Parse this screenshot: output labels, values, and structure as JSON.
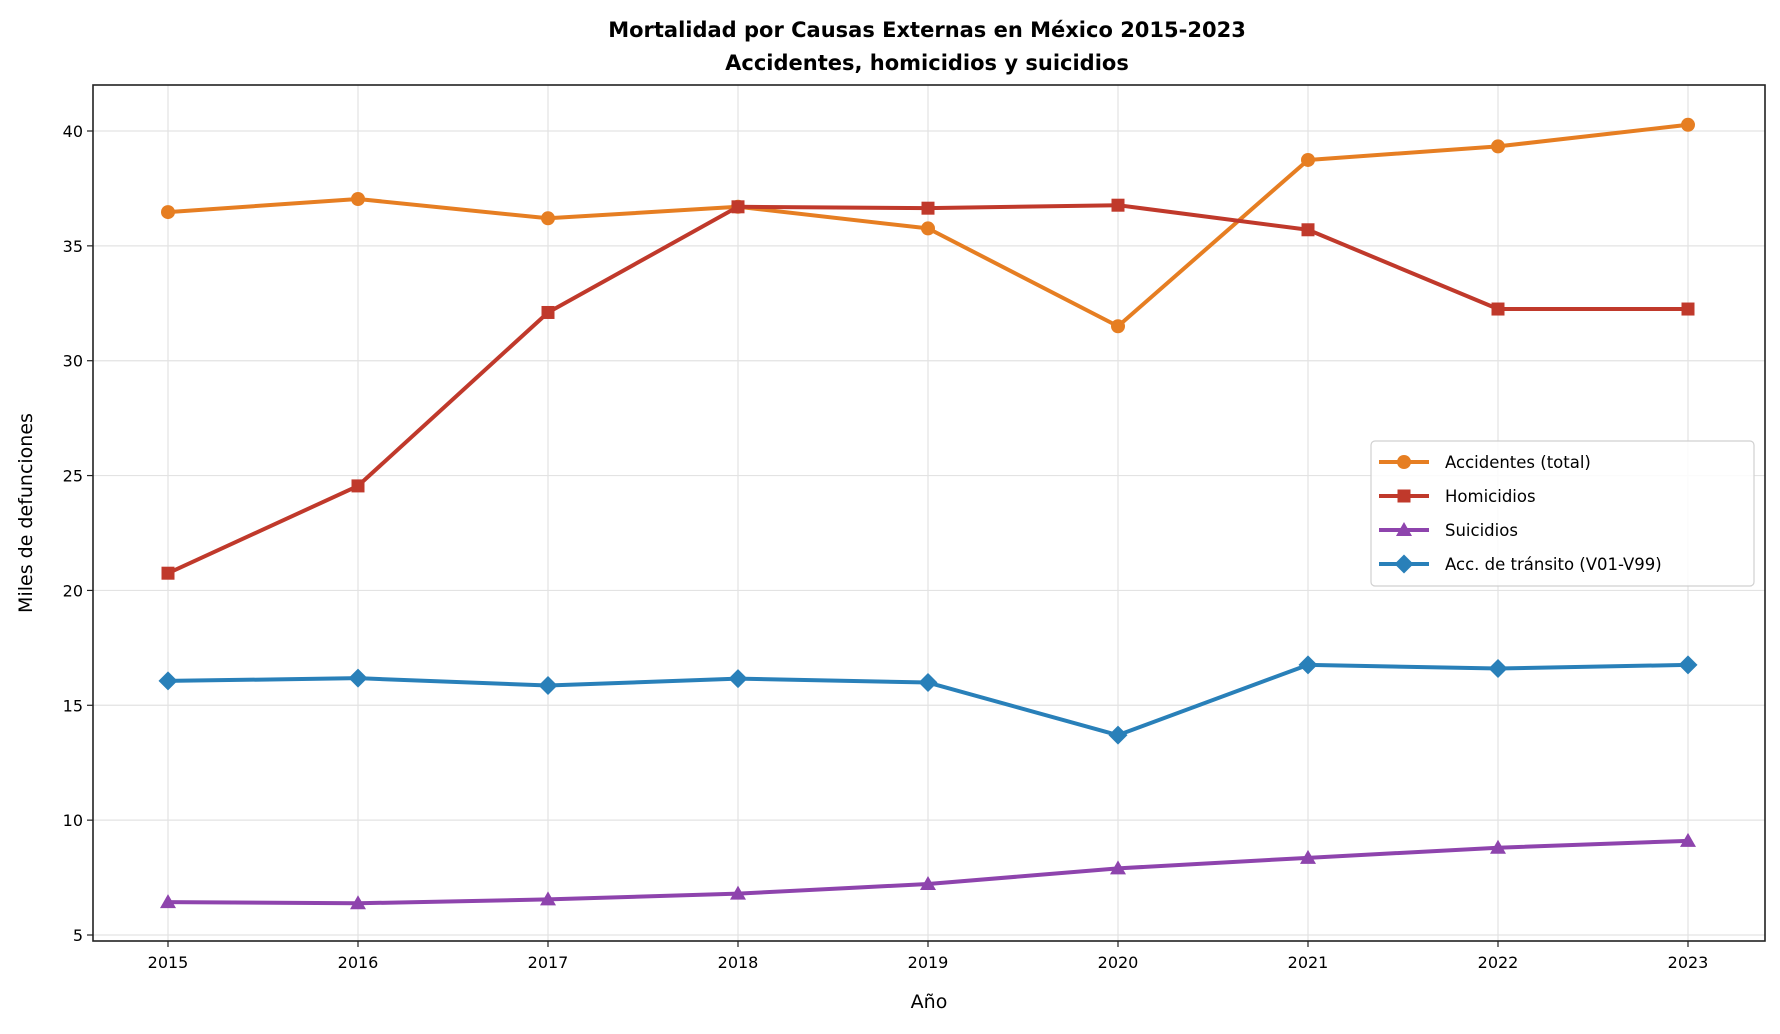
{
  "chart_data": {
    "type": "line",
    "title": "Mortalidad por Causas Externas en México 2015-2023",
    "subtitle": "Accidentes, homicidios y suicidios",
    "xlabel": "Año",
    "ylabel": "Miles de defunciones",
    "x": [
      2015,
      2016,
      2017,
      2018,
      2019,
      2020,
      2021,
      2022,
      2023
    ],
    "xlim": [
      2014.6,
      2023.4
    ],
    "ylim": [
      4.5,
      42
    ],
    "yticks": [
      5,
      10,
      15,
      20,
      25,
      30,
      35,
      40
    ],
    "grid": true,
    "legend_position": "center-right",
    "series": [
      {
        "name": "Accidentes (total)",
        "color": "#e67e22",
        "marker": "circle",
        "values": [
          36.47,
          37.04,
          36.2,
          36.7,
          35.76,
          31.5,
          38.74,
          39.33,
          40.27
        ]
      },
      {
        "name": "Homicidios",
        "color": "#c0392b",
        "marker": "square",
        "values": [
          20.75,
          24.55,
          32.1,
          36.7,
          36.64,
          36.77,
          35.7,
          32.25,
          32.25
        ]
      },
      {
        "name": "Suicidios",
        "color": "#8e44ad",
        "marker": "triangle",
        "values": [
          6.43,
          6.38,
          6.55,
          6.8,
          7.22,
          7.9,
          8.36,
          8.8,
          9.1
        ]
      },
      {
        "name": "Acc. de tránsito (V01-V99)",
        "color": "#2980b9",
        "marker": "diamond",
        "values": [
          16.06,
          16.18,
          15.86,
          16.16,
          15.99,
          13.7,
          16.76,
          16.6,
          16.76
        ]
      }
    ]
  }
}
